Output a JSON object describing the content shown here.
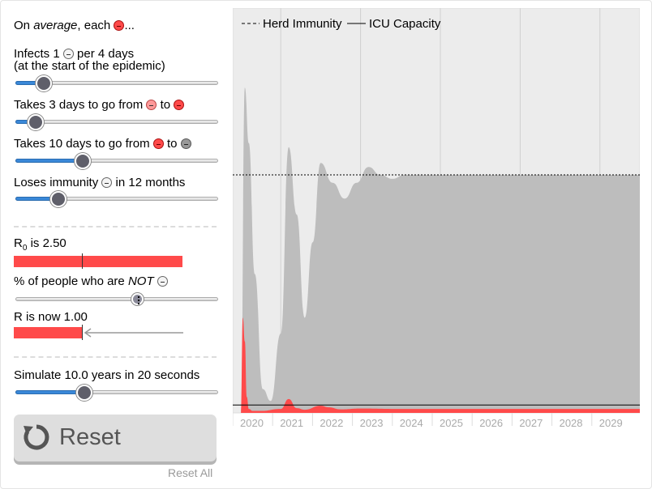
{
  "panel": {
    "intro_prefix": "On ",
    "intro_em": "average",
    "intro_suffix": ", each",
    "intro_end": "...",
    "infects_prefix": "Infects 1",
    "infects_suffix": "per 4 days",
    "infects_note": "(at the start of the epidemic)",
    "infects_value_fraction": 0.14,
    "exposed_prefix": "Takes 3 days to go from",
    "exposed_mid": "to",
    "exposed_value_fraction": 0.1,
    "infectious_prefix": "Takes 10 days to go from",
    "infectious_mid": "to",
    "infectious_value_fraction": 0.33,
    "immunity_prefix": "Loses immunity",
    "immunity_suffix": "in 12 months",
    "immunity_value_fraction": 0.21,
    "r0_label": "R",
    "r0_sub": "0",
    "r0_value": "is 2.50",
    "not_prefix": "% of people who are",
    "not_em": "NOT",
    "not_value_fraction": 0.6,
    "r_now_label": "R is now 1.00",
    "simulate_label": "Simulate 10.0 years in 20 seconds",
    "simulate_value_fraction": 0.34,
    "reset_label": "Reset",
    "reset_all_label": "Reset All"
  },
  "icons": {
    "sick": "sick-face-icon",
    "exposed": "exposed-face-icon",
    "healthy": "healthy-face-icon",
    "recovered": "recovered-face-icon",
    "reset": "reset-arrow-icon"
  },
  "colors": {
    "infected": "#ff4a4a",
    "recovered_area": "#bdbdbd",
    "susceptible_bg": "#ececec",
    "slider_fill": "#3a88d8"
  },
  "chart_data": {
    "type": "area",
    "legend": [
      "Herd Immunity",
      "ICU Capacity"
    ],
    "legend_position": "top-left",
    "x_ticks": [
      "2020",
      "2021",
      "2022",
      "2023",
      "2024",
      "2025",
      "2026",
      "2027",
      "2028",
      "2029"
    ],
    "x_range": [
      2020,
      2030
    ],
    "y_range": [
      0,
      1
    ],
    "herd_immunity_level": 0.6,
    "icu_capacity_level": 0.02,
    "series": [
      {
        "x": [
          2020.0,
          2020.1,
          2020.2,
          2020.35,
          2020.55,
          2020.75,
          2021.0,
          2021.2,
          2021.4,
          2021.6,
          2021.8,
          2022.0,
          2022.3,
          2022.6,
          2022.9,
          2023.2,
          2023.5,
          2023.8,
          2024.1,
          2024.4,
          2025.0,
          2026.0,
          2027.0,
          2028.0,
          2029.0,
          2030.0
        ],
        "values": [
          0.0,
          0.82,
          0.68,
          0.35,
          0.06,
          0.03,
          0.2,
          0.67,
          0.5,
          0.24,
          0.43,
          0.63,
          0.58,
          0.54,
          0.58,
          0.62,
          0.6,
          0.59,
          0.6,
          0.6,
          0.6,
          0.6,
          0.6,
          0.6,
          0.6,
          0.6
        ]
      },
      {
        "x": [
          2020.0,
          2020.05,
          2020.1,
          2020.15,
          2020.2,
          2020.3,
          2020.5,
          2021.0,
          2021.2,
          2021.4,
          2021.6,
          2022.0,
          2022.2,
          2022.5,
          2023.0,
          2024.0,
          2025.0,
          2026.0,
          2027.0,
          2028.0,
          2029.0,
          2030.0
        ],
        "values": [
          0.0,
          0.24,
          0.18,
          0.04,
          0.01,
          0.005,
          0.005,
          0.01,
          0.035,
          0.012,
          0.008,
          0.018,
          0.014,
          0.009,
          0.011,
          0.01,
          0.01,
          0.01,
          0.01,
          0.01,
          0.01,
          0.01
        ]
      }
    ]
  }
}
